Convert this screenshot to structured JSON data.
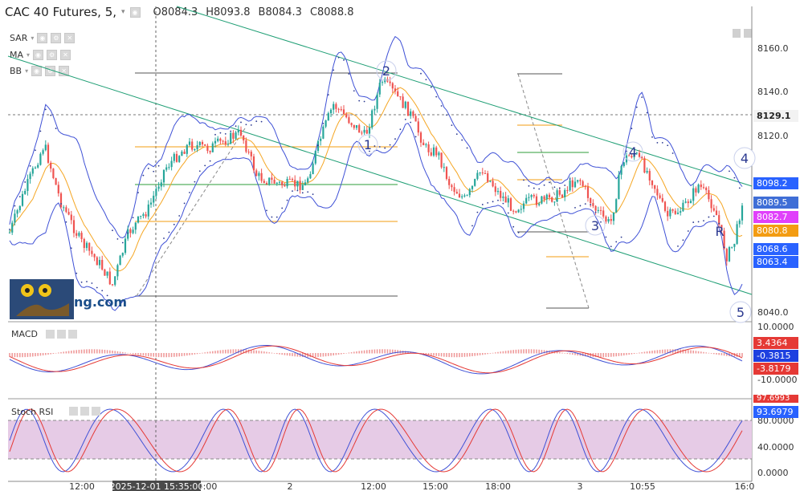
{
  "header": {
    "symbol": "CAC 40 Futures, 5,",
    "open": "O8084.3",
    "high": "H8093.8",
    "low": "B8084.3",
    "close": "C8088.8"
  },
  "indicators": [
    {
      "label": "SAR"
    },
    {
      "label": "MA"
    },
    {
      "label": "BB"
    }
  ],
  "macd": {
    "label": "MACD",
    "badges": [
      "3.4364",
      "-0.3815",
      "-3.8179"
    ],
    "ticks": [
      "10.0000",
      "-10.0000"
    ]
  },
  "stoch": {
    "label": "Stoch RSI",
    "badges": [
      "97.6993",
      "93.6979"
    ],
    "ticks": [
      "80.0000",
      "40.0000",
      "0.0000"
    ]
  },
  "price_axis": {
    "ticks": [
      "8160.0",
      "8140.0",
      "8120.0",
      "8040.0"
    ],
    "badges": [
      "8129.1",
      "8098.2",
      "8089.5",
      "8082.7",
      "8080.8",
      "8068.6",
      "8063.4"
    ],
    "badge_colors": [
      "#f2f2f2",
      "#2962ff",
      "#3f6ed6",
      "#e040fb",
      "#f39c12",
      "#2962ff",
      "#2962ff"
    ]
  },
  "time_axis": {
    "ticks": [
      "12:00",
      "8:00",
      "2",
      "12:00",
      "15:00",
      "18:00",
      "3",
      "10:55",
      "16:0"
    ],
    "crosshair_label": "2025-12-01 15:35:00"
  },
  "wave_labels": [
    "1",
    "2",
    "3",
    "4",
    "R",
    "4",
    "5"
  ],
  "logo_text": "ng.com",
  "colors": {
    "bull": "#26a69a",
    "bear": "#ef5350",
    "band": "#3f51d6",
    "channel": "#1e9e74",
    "ma": "#f5a623",
    "stoch_fill": "#e6cbe6"
  }
}
